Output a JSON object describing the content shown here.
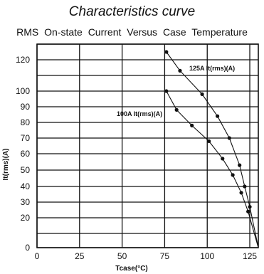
{
  "title": "Characteristics  curve",
  "subtitle": "RMS  On-state  Current  Versus  Case  Temperature",
  "chart_data": {
    "type": "line",
    "title": "Characteristics  curve",
    "subtitle": "RMS  On-state  Current  Versus  Case  Temperature",
    "xlabel": "Tcase(°C)",
    "ylabel": "It(rms)(A)",
    "xlim": [
      0,
      130
    ],
    "x_ticks": [
      0,
      25,
      50,
      75,
      100,
      125
    ],
    "y_ticks": [
      0,
      20,
      30,
      40,
      50,
      60,
      70,
      80,
      90,
      100,
      120
    ],
    "grid": true,
    "series": [
      {
        "name": "125A It(rms)(A)",
        "x": [
          76,
          84,
          97,
          106,
          113,
          119,
          122,
          125,
          130
        ],
        "y": [
          125,
          113,
          98,
          84,
          70,
          53,
          40,
          27,
          0
        ]
      },
      {
        "name": "100A It(rms)(A)",
        "x": [
          76,
          82,
          91,
          101,
          109,
          115,
          120,
          124,
          130
        ],
        "y": [
          100,
          88,
          78,
          68,
          57,
          47,
          36,
          24,
          0
        ]
      }
    ]
  }
}
